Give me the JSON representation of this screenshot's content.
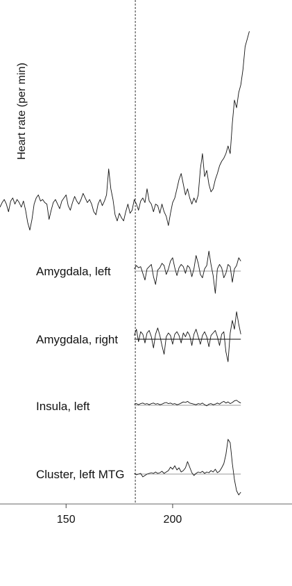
{
  "chart_data": {
    "type": "line",
    "ylabel": "Heart rate (per min)",
    "xlim": [
      119,
      256
    ],
    "xticks": [
      150,
      200
    ],
    "event_x": 182.5,
    "grid": false,
    "series": [
      {
        "name": "Heart rate",
        "x": [
          119,
          120,
          121,
          122,
          123,
          124,
          125,
          126,
          127,
          128,
          129,
          130,
          131,
          132,
          133,
          134,
          135,
          136,
          137,
          138,
          139,
          140,
          141,
          142,
          143,
          144,
          145,
          146,
          147,
          148,
          149,
          150,
          151,
          152,
          153,
          154,
          155,
          156,
          157,
          158,
          159,
          160,
          161,
          162,
          163,
          164,
          165,
          166,
          167,
          168,
          169,
          170,
          171,
          172,
          173,
          174,
          175,
          176,
          177,
          178,
          179,
          180,
          181,
          182,
          183,
          184,
          185,
          186,
          187,
          188,
          189,
          190,
          191,
          192,
          193,
          194,
          195,
          196,
          197,
          198,
          199,
          200,
          201,
          202,
          203,
          204,
          205,
          206,
          207,
          208,
          209,
          210,
          211,
          212,
          213,
          214,
          215,
          216,
          217,
          218,
          219,
          220,
          221,
          222,
          223,
          224,
          225,
          226,
          227,
          228,
          229,
          230,
          231,
          232,
          233,
          234,
          235,
          236
        ],
        "values": [
          0.0,
          0.3,
          0.5,
          0.2,
          -0.3,
          0.4,
          0.6,
          0.2,
          0.5,
          0.3,
          0.0,
          0.4,
          -0.2,
          -1.0,
          -1.5,
          -0.8,
          0.2,
          0.6,
          0.8,
          0.4,
          0.5,
          0.3,
          0.2,
          -0.8,
          -0.2,
          0.3,
          0.5,
          0.2,
          -0.1,
          0.4,
          0.6,
          0.8,
          0.1,
          -0.2,
          0.3,
          0.7,
          0.4,
          0.2,
          0.5,
          0.9,
          0.6,
          0.3,
          0.5,
          0.2,
          -0.3,
          -0.5,
          0.2,
          0.5,
          0.1,
          0.4,
          0.8,
          2.5,
          1.2,
          0.5,
          -0.5,
          -0.9,
          -0.4,
          -0.7,
          -0.9,
          -0.3,
          0.2,
          -0.4,
          -0.2,
          0.5,
          0.2,
          -0.2,
          0.4,
          0.6,
          0.3,
          1.2,
          0.4,
          0.2,
          -0.3,
          0.2,
          0.1,
          -0.4,
          0.2,
          -0.3,
          -0.6,
          -1.2,
          -0.4,
          0.3,
          0.6,
          1.2,
          1.8,
          2.2,
          1.5,
          0.8,
          1.2,
          0.6,
          0.2,
          0.6,
          0.3,
          0.8,
          2.5,
          3.5,
          2.0,
          2.4,
          1.5,
          1.0,
          1.2,
          1.8,
          2.2,
          2.7,
          3.0,
          3.2,
          3.5,
          4.0,
          3.5,
          5.5,
          7.0,
          6.5,
          7.5,
          8.0,
          9.0,
          10.5,
          11.0,
          11.5
        ]
      },
      {
        "name": "Amygdala, left",
        "x": [
          182,
          183,
          184,
          185,
          186,
          187,
          188,
          189,
          190,
          191,
          192,
          193,
          194,
          195,
          196,
          197,
          198,
          199,
          200,
          201,
          202,
          203,
          204,
          205,
          206,
          207,
          208,
          209,
          210,
          211,
          212,
          213,
          214,
          215,
          216,
          217,
          218,
          219,
          220,
          221,
          222,
          223,
          224,
          225,
          226,
          227,
          228,
          229,
          230,
          231,
          232
        ],
        "values": [
          0.2,
          0.5,
          0.3,
          0.4,
          -0.2,
          -0.8,
          0.2,
          0.4,
          0.6,
          -0.5,
          -1.2,
          0.1,
          0.3,
          0.7,
          0.5,
          -0.3,
          0.2,
          0.9,
          1.2,
          0.3,
          -0.4,
          0.3,
          0.6,
          0.4,
          -0.2,
          0.5,
          0.3,
          -0.5,
          0.2,
          1.4,
          0.7,
          -0.3,
          -0.6,
          0.2,
          0.5,
          1.8,
          0.6,
          -0.4,
          -2.0,
          0.2,
          0.6,
          0.3,
          -0.6,
          -0.2,
          0.6,
          0.4,
          -1.0,
          0.2,
          0.5,
          1.2,
          0.9
        ]
      },
      {
        "name": "Amygdala, right",
        "x": [
          182,
          183,
          184,
          185,
          186,
          187,
          188,
          189,
          190,
          191,
          192,
          193,
          194,
          195,
          196,
          197,
          198,
          199,
          200,
          201,
          202,
          203,
          204,
          205,
          206,
          207,
          208,
          209,
          210,
          211,
          212,
          213,
          214,
          215,
          216,
          217,
          218,
          219,
          220,
          221,
          222,
          223,
          224,
          225,
          226,
          227,
          228,
          229,
          230,
          231,
          232
        ],
        "values": [
          0.3,
          0.8,
          -0.2,
          0.6,
          0.4,
          -0.3,
          0.5,
          0.7,
          0.2,
          -0.7,
          0.4,
          0.9,
          0.3,
          -0.5,
          -1.2,
          0.2,
          0.5,
          0.3,
          -0.4,
          0.4,
          0.6,
          0.3,
          -0.3,
          0.5,
          0.2,
          0.6,
          0.3,
          -0.5,
          0.4,
          0.8,
          0.2,
          -0.4,
          0.3,
          0.6,
          0.2,
          -0.6,
          0.3,
          0.5,
          0.7,
          0.2,
          -0.5,
          0.4,
          0.6,
          -1.0,
          -1.8,
          0.5,
          1.5,
          0.8,
          2.2,
          1.2,
          0.4
        ]
      },
      {
        "name": "Insula, left",
        "x": [
          182,
          183,
          184,
          185,
          186,
          187,
          188,
          189,
          190,
          191,
          192,
          193,
          194,
          195,
          196,
          197,
          198,
          199,
          200,
          201,
          202,
          203,
          204,
          205,
          206,
          207,
          208,
          209,
          210,
          211,
          212,
          213,
          214,
          215,
          216,
          217,
          218,
          219,
          220,
          221,
          222,
          223,
          224,
          225,
          226,
          227,
          228,
          229,
          230,
          231,
          232
        ],
        "values": [
          0.2,
          0.3,
          0.1,
          0.3,
          0.4,
          0.2,
          0.3,
          0.1,
          0.3,
          0.4,
          0.2,
          0.3,
          0.1,
          0.2,
          0.4,
          0.5,
          0.3,
          0.4,
          0.2,
          0.3,
          0.1,
          0.2,
          0.4,
          0.6,
          0.5,
          0.7,
          0.4,
          0.3,
          0.2,
          0.1,
          0.3,
          0.2,
          0.4,
          0.1,
          -0.1,
          0.2,
          0.3,
          0.1,
          0.2,
          0.4,
          0.2,
          0.5,
          0.7,
          0.4,
          0.6,
          0.3,
          0.5,
          0.8,
          0.9,
          0.6,
          0.4
        ]
      },
      {
        "name": "Cluster, left MTG",
        "x": [
          182,
          183,
          184,
          185,
          186,
          187,
          188,
          189,
          190,
          191,
          192,
          193,
          194,
          195,
          196,
          197,
          198,
          199,
          200,
          201,
          202,
          203,
          204,
          205,
          206,
          207,
          208,
          209,
          210,
          211,
          212,
          213,
          214,
          215,
          216,
          217,
          218,
          219,
          220,
          221,
          222,
          223,
          224,
          225,
          226,
          227,
          228,
          229,
          230,
          231,
          232
        ],
        "values": [
          0.1,
          -0.1,
          0.0,
          0.1,
          -0.4,
          -0.2,
          0.0,
          0.1,
          0.2,
          0.1,
          0.3,
          0.1,
          0.2,
          0.4,
          0.1,
          0.3,
          0.5,
          1.0,
          0.7,
          1.2,
          0.6,
          0.9,
          0.3,
          0.5,
          0.9,
          1.8,
          1.0,
          0.2,
          -0.2,
          0.1,
          0.3,
          0.2,
          0.4,
          0.1,
          0.3,
          0.2,
          0.5,
          0.3,
          0.7,
          0.2,
          0.4,
          0.9,
          1.5,
          2.8,
          5.0,
          4.5,
          1.5,
          -0.8,
          -2.4,
          -3.0,
          -2.6
        ]
      }
    ]
  }
}
